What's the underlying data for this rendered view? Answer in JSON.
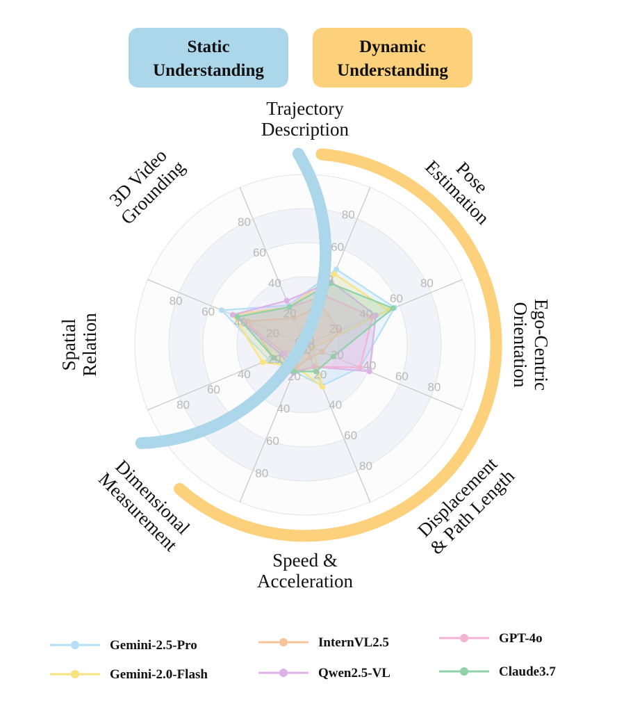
{
  "chart_data": {
    "type": "radar",
    "title": "",
    "rlim": [
      0,
      100
    ],
    "r_ticks": [
      0,
      20,
      40,
      60,
      80
    ],
    "grid": true,
    "categories": [
      {
        "lines": [
          "Trajectory",
          "Description"
        ]
      },
      {
        "lines": [
          "Pose",
          "Estimation"
        ]
      },
      {
        "lines": [
          "Ego-Centric",
          "Orientation"
        ]
      },
      {
        "lines": [
          "Displacement",
          "& Path Length"
        ]
      },
      {
        "lines": [
          "Speed &",
          "Acceleration"
        ]
      },
      {
        "lines": [
          "Dimensional",
          "Measurement"
        ]
      },
      {
        "lines": [
          "Spatial",
          "Relation"
        ]
      },
      {
        "lines": [
          "3D Video",
          "Grounding"
        ]
      }
    ],
    "groups": [
      {
        "lines": [
          "Static",
          "Understanding"
        ],
        "color": "#acd7ea",
        "categories": [
          "Dimensional Measurement",
          "Spatial Relation",
          "3D Video Grounding"
        ]
      },
      {
        "lines": [
          "Dynamic",
          "Understanding"
        ],
        "color": "#fdd07c",
        "categories": [
          "Trajectory Description",
          "Pose Estimation",
          "Ego-Centric Orientation",
          "Displacement & Path Length",
          "Speed & Acceleration"
        ]
      }
    ],
    "series": [
      {
        "name": "Gemini-2.5-Pro",
        "color": "#b5def7",
        "values": [
          48,
          57,
          35,
          26,
          17,
          23,
          53,
          25
        ]
      },
      {
        "name": "Gemini-2.0-Flash",
        "color": "#f8e37e",
        "values": [
          45,
          53,
          5,
          27,
          14,
          27,
          46,
          24
        ]
      },
      {
        "name": "InternVL2.5",
        "color": "#f6c49a",
        "values": [
          25,
          22,
          11,
          8,
          15,
          20,
          36,
          17
        ]
      },
      {
        "name": "Qwen2.5-VL",
        "color": "#dcb1e6",
        "values": [
          40,
          45,
          41,
          14,
          18,
          15,
          46,
          28
        ]
      },
      {
        "name": "GPT-4o",
        "color": "#f3b3d3",
        "values": [
          31,
          43,
          35,
          14,
          17,
          13,
          43,
          24
        ]
      },
      {
        "name": "Claude3.7",
        "color": "#8fd1a9",
        "values": [
          39,
          56,
          18,
          17,
          17,
          20,
          43,
          24
        ]
      }
    ]
  }
}
